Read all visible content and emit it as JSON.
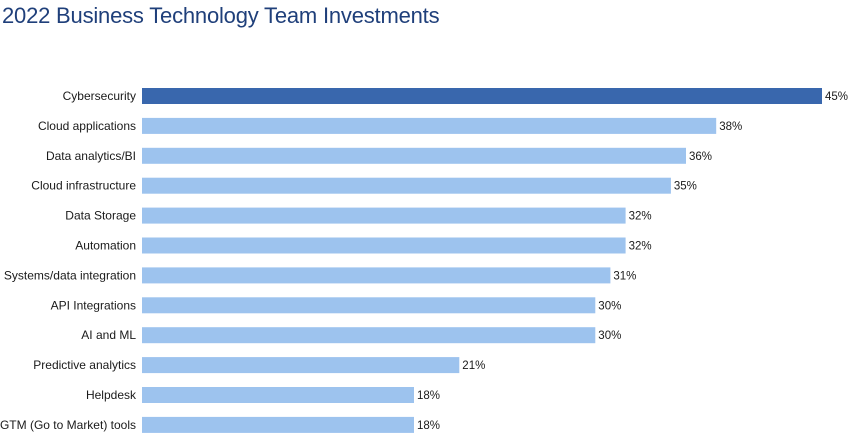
{
  "chart_data": {
    "type": "bar",
    "orientation": "horizontal",
    "title": "2022 Business Technology Team Investments",
    "xlabel": "",
    "ylabel": "",
    "value_suffix": "%",
    "xlim": [
      0,
      45
    ],
    "grid": false,
    "legend": "none",
    "categories": [
      "Cybersecurity",
      "Cloud applications",
      "Data analytics/BI",
      "Cloud infrastructure",
      "Data Storage",
      "Automation",
      "Systems/data integration",
      "API Integrations",
      "AI and ML",
      "Predictive analytics",
      "Helpdesk",
      "GTM (Go to Market) tools"
    ],
    "values": [
      45,
      38,
      36,
      35,
      32,
      32,
      31,
      30,
      30,
      21,
      18,
      18
    ],
    "data_labels": [
      "45%",
      "38%",
      "36%",
      "35%",
      "32%",
      "32%",
      "31%",
      "30%",
      "30%",
      "21%",
      "18%",
      "18%"
    ],
    "highlight_index": 0
  },
  "colors": {
    "title": "#1f3f7a",
    "bar_default": "#9dc3ee",
    "bar_highlight": "#3967ad",
    "text": "#1a1a1a"
  }
}
